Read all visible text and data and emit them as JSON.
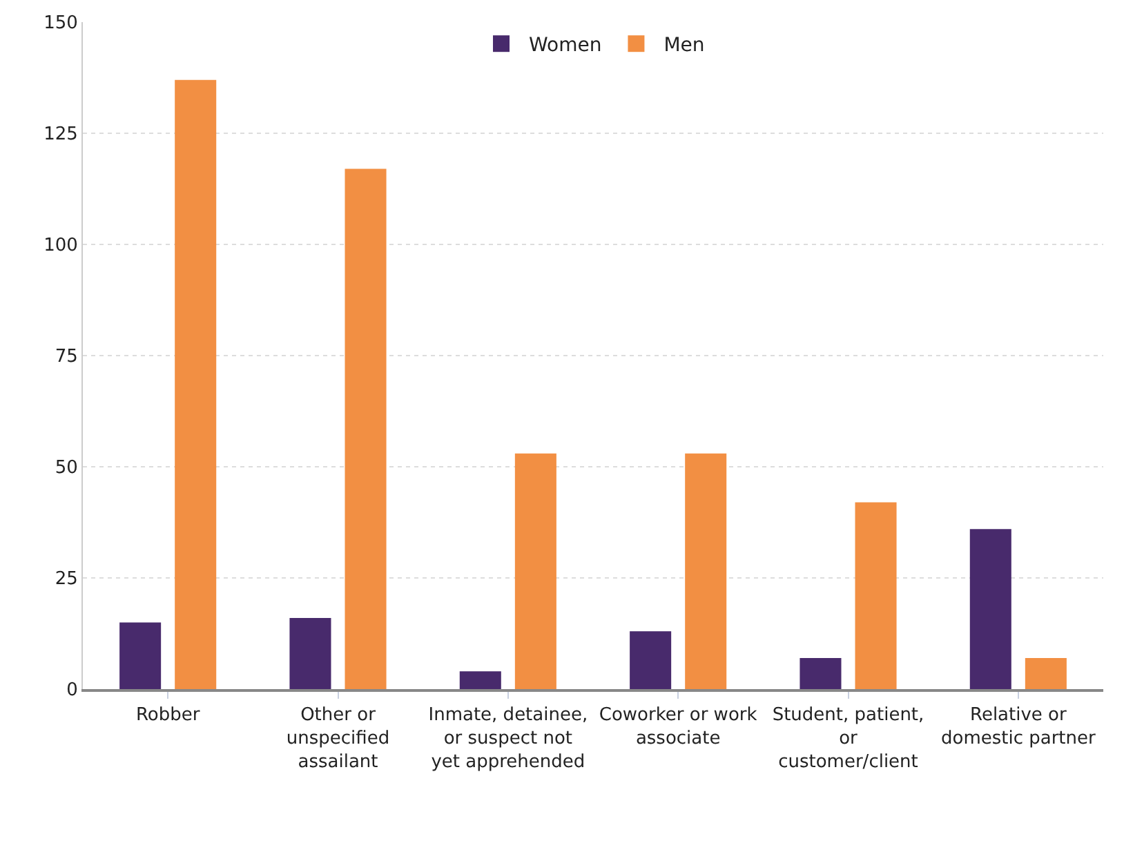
{
  "chart_data": {
    "type": "bar",
    "categories": [
      "Robber",
      "Other or unspecified assailant",
      "Inmate, detainee, or suspect not yet apprehended",
      "Coworker or work associate",
      "Student, patient, or customer/client",
      "Relative or domestic partner"
    ],
    "series": [
      {
        "name": "Women",
        "color": "#482a6c",
        "values": [
          15,
          16,
          4,
          13,
          7,
          36
        ]
      },
      {
        "name": "Men",
        "color": "#f28f43",
        "values": [
          137,
          117,
          53,
          53,
          42,
          7
        ]
      }
    ],
    "ylim": [
      0,
      150
    ],
    "yticks": [
      0,
      25,
      50,
      75,
      100,
      125,
      150
    ],
    "grid": "y",
    "legend": "top"
  }
}
